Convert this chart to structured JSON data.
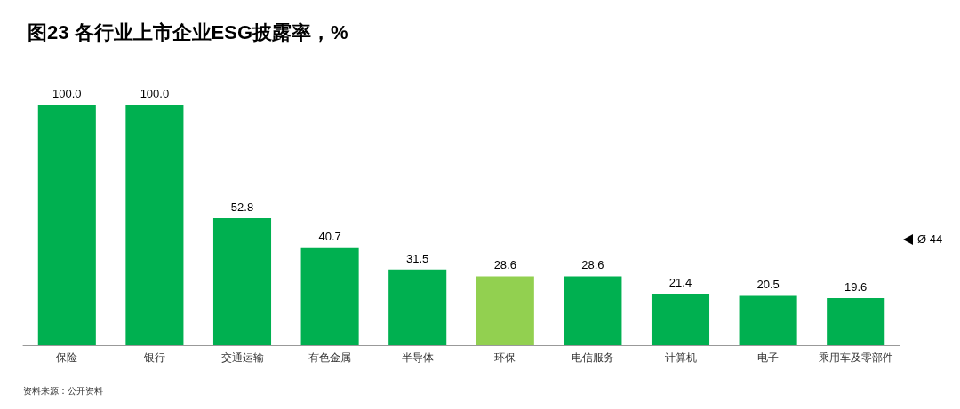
{
  "chart_data": {
    "type": "bar",
    "title": "图23 各行业上市企业ESG披露率，%",
    "categories": [
      "保险",
      "银行",
      "交通运输",
      "有色金属",
      "半导体",
      "环保",
      "电信服务",
      "计算机",
      "电子",
      "乘用车及零部件"
    ],
    "values": [
      100.0,
      100.0,
      52.8,
      40.7,
      31.5,
      28.6,
      28.6,
      21.4,
      20.5,
      19.6
    ],
    "colors": [
      "#00b050",
      "#00b050",
      "#00b050",
      "#00b050",
      "#00b050",
      "#92d050",
      "#00b050",
      "#00b050",
      "#00b050",
      "#00b050"
    ],
    "value_labels": [
      "100.0",
      "100.0",
      "52.8",
      "40.7",
      "31.5",
      "28.6",
      "28.6",
      "21.4",
      "20.5",
      "19.6"
    ],
    "ref_lines": [
      {
        "axis": "y",
        "value": 44,
        "label": "Ø 44",
        "color": "#404040",
        "line_style": "dashed"
      }
    ],
    "annotations": [
      "资料来源：公开资料"
    ]
  }
}
